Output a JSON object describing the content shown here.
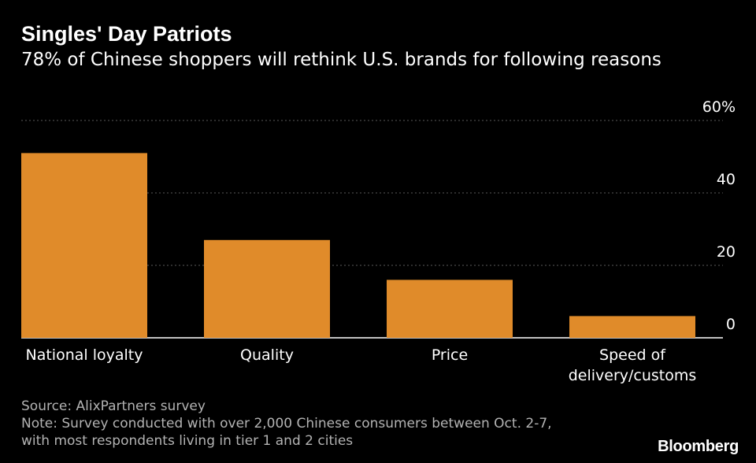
{
  "header": {
    "title": "Singles' Day Patriots",
    "subtitle": "78% of Chinese shoppers will rethink U.S. brands for following reasons"
  },
  "chart_data": {
    "type": "bar",
    "categories": [
      "National loyalty",
      "Quality",
      "Price",
      "Speed of delivery/customs"
    ],
    "category_lines": [
      [
        "National loyalty"
      ],
      [
        "Quality"
      ],
      [
        "Price"
      ],
      [
        "Speed of",
        "delivery/customs"
      ]
    ],
    "values": [
      51,
      27,
      16,
      6
    ],
    "ylim": [
      0,
      60
    ],
    "yticks": [
      0,
      20,
      40,
      60
    ],
    "ytick_labels": [
      "0",
      "20",
      "40",
      "60%"
    ],
    "bar_color": "#e08b2a",
    "grid": true,
    "xlabel": "",
    "ylabel": ""
  },
  "footer": {
    "source": "Source: AlixPartners survey",
    "note_line1": "Note: Survey conducted with over 2,000 Chinese consumers between Oct. 2-7,",
    "note_line2": "with most respondents living in tier 1 and 2 cities",
    "brand": "Bloomberg"
  },
  "colors": {
    "background": "#000000",
    "bar": "#e08b2a",
    "text": "#ffffff",
    "muted_text": "#b3b3b3",
    "grid": "#5a5a5a"
  }
}
